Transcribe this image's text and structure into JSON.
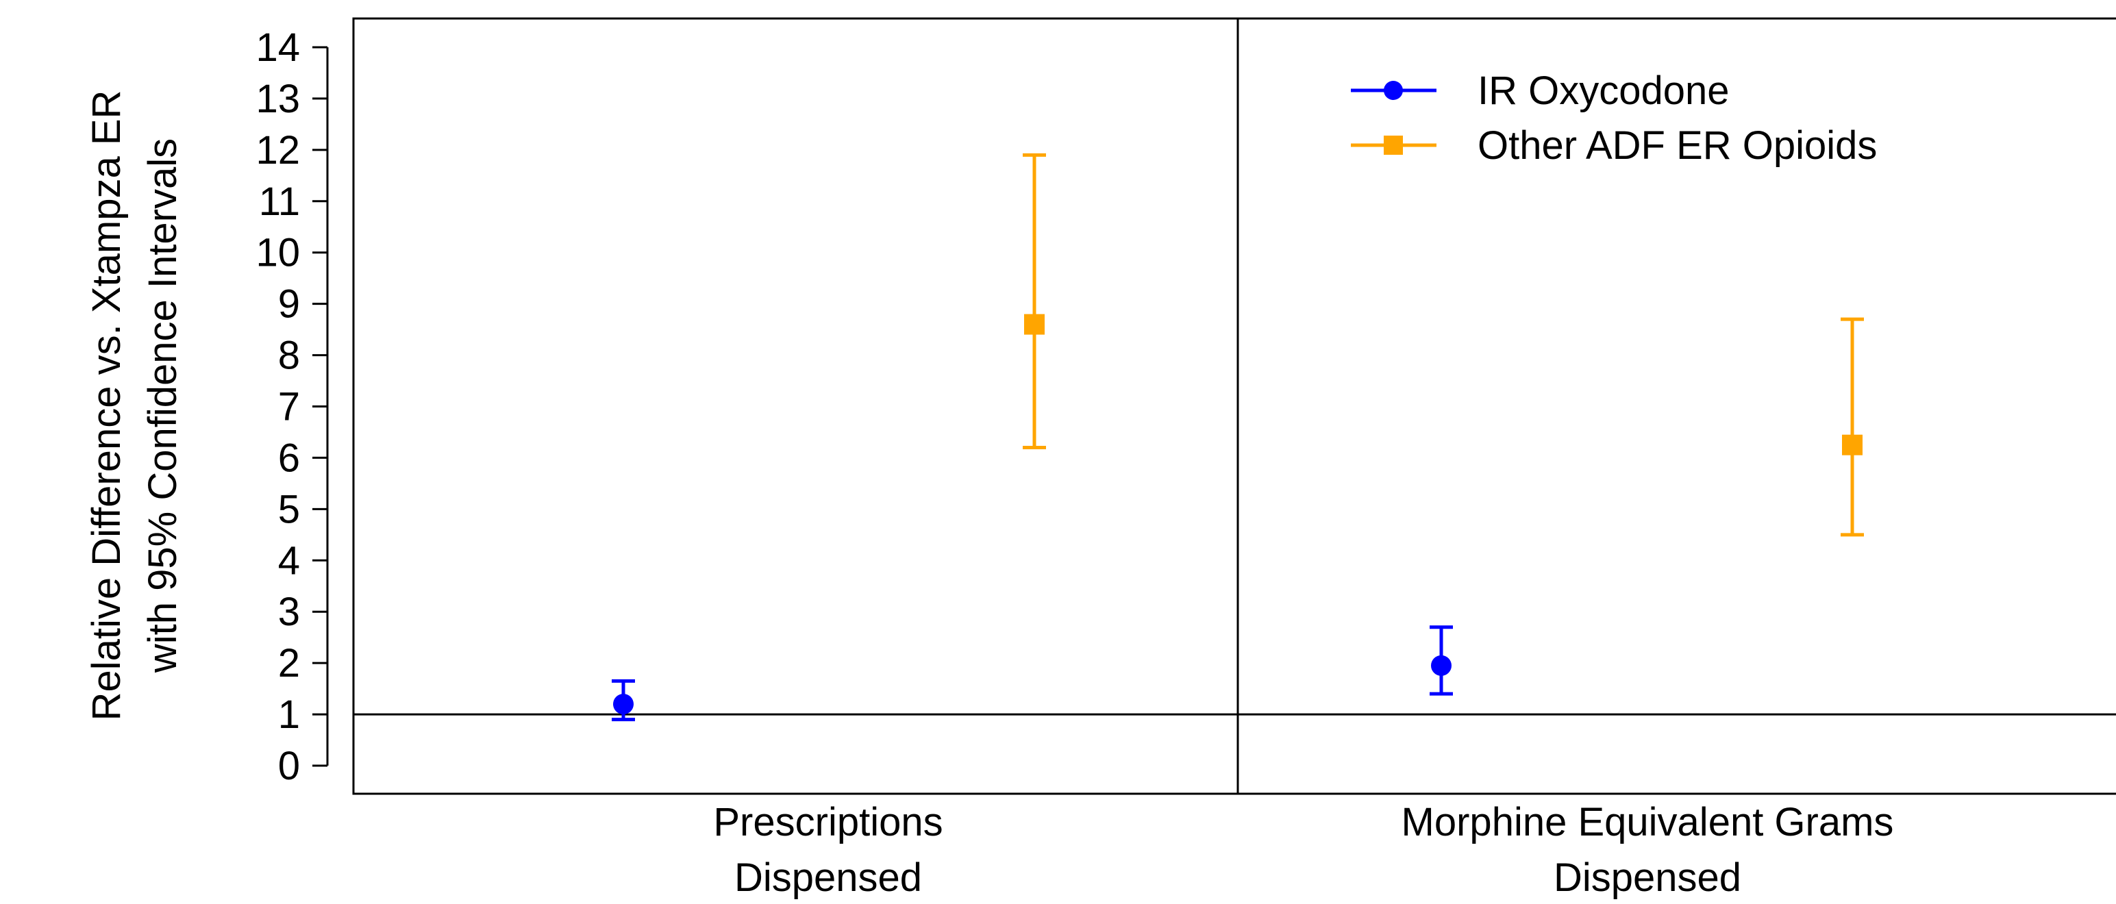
{
  "colors": {
    "ir_oxycodone": "#0000ff",
    "other_adf": "#ffa500",
    "axis": "#000000"
  },
  "chart_data": {
    "type": "scatter",
    "subtype": "point-with-error-bars",
    "title": "",
    "ylabel_line1": "Relative Difference vs. Xtampza ER",
    "ylabel_line2": "with 95% Confidence Intervals",
    "ylim": [
      0,
      14
    ],
    "yticks": [
      0,
      1,
      2,
      3,
      4,
      5,
      6,
      7,
      8,
      9,
      10,
      11,
      12,
      13,
      14
    ],
    "reference_line": 1,
    "categories": [
      {
        "line1": "Prescriptions",
        "line2": "Dispensed"
      },
      {
        "line1": "Morphine Equivalent Grams",
        "line2": "Dispensed"
      }
    ],
    "legend_position": "top-right",
    "series": [
      {
        "name": "IR Oxycodone",
        "marker": "circle",
        "color": "#0000ff",
        "points": [
          {
            "category": 0,
            "value": 1.2,
            "lower": 0.9,
            "upper": 1.65
          },
          {
            "category": 1,
            "value": 1.95,
            "lower": 1.4,
            "upper": 2.7
          }
        ]
      },
      {
        "name": "Other ADF ER Opioids",
        "marker": "square",
        "color": "#ffa500",
        "points": [
          {
            "category": 0,
            "value": 8.6,
            "lower": 6.2,
            "upper": 11.9
          },
          {
            "category": 1,
            "value": 6.25,
            "lower": 4.5,
            "upper": 8.7
          }
        ]
      }
    ]
  }
}
